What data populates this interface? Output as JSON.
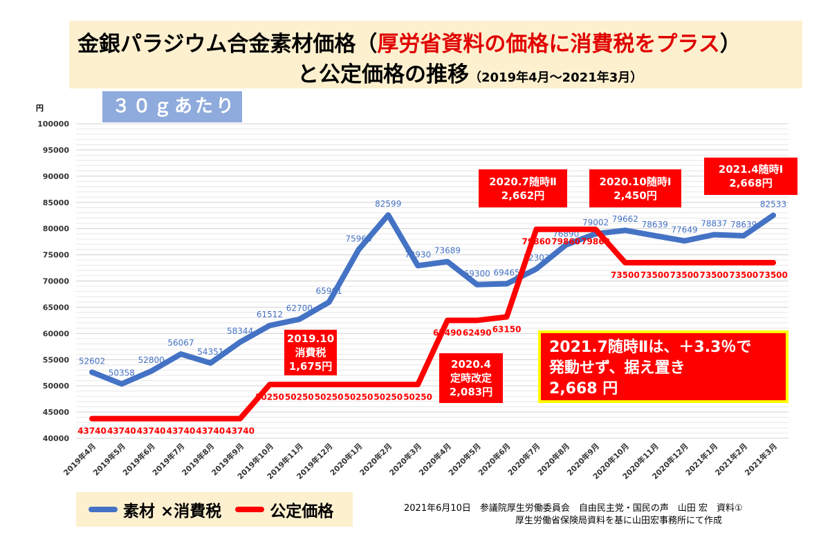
{
  "title": {
    "line1_black": "金銀パラジウム合金素材価格（",
    "line1_red": "厚労省資料の価格に消費税をプラス",
    "line1_end": "）",
    "line2": "と公定価格の推移",
    "line2_sub": "（2019年4月～2021年3月）"
  },
  "unit_box": "３０ｇあたり",
  "callouts": {
    "c1": "2019.10\n消費税\n1,675円",
    "c2": "2020.4\n定時改定\n2,083円",
    "c3": "2020.7随時Ⅱ\n2,662円",
    "c4": "2020.10随時Ⅰ\n2,450円",
    "c5": "2021.4随時Ⅰ\n2,668円",
    "big": "2021.7随時Ⅱは、＋3.3％で\n発動せず、据え置き\n2,668 円"
  },
  "footer": {
    "line1": "2021年6月10日　参議院厚生労働委員会　自由民主党・国民の声　山田 宏　資料①",
    "line2": "厚生労働省保険局資料を基に山田宏事務所にて作成"
  },
  "colors": {
    "blue": "#4472c4",
    "red": "#ff0000"
  },
  "chart_data": {
    "type": "line",
    "ylabel": "円",
    "ylim": [
      40000,
      100000
    ],
    "yticks": [
      40000,
      45000,
      50000,
      55000,
      60000,
      65000,
      70000,
      75000,
      80000,
      85000,
      90000,
      95000,
      100000
    ],
    "grid": true,
    "legend": "bottom-left",
    "categories": [
      "2019年4月",
      "2019年5月",
      "2019年6月",
      "2019年7月",
      "2019年8月",
      "2019年9月",
      "2019年10月",
      "2019年11月",
      "2019年12月",
      "2020年1月",
      "2020年2月",
      "2020年3月",
      "2020年4月",
      "2020年5月",
      "2020年6月",
      "2020年7月",
      "2020年8月",
      "2020年9月",
      "2020年10月",
      "2020年11月",
      "2020年12月",
      "2021年1月",
      "2021年2月",
      "2021年3月"
    ],
    "series": [
      {
        "name": "素材 ×消費税",
        "color": "#4472c4",
        "values": [
          52602,
          50358,
          52800,
          56067,
          54351,
          58344,
          61512,
          62700,
          65961,
          75966,
          82599,
          72930,
          73689,
          69300,
          69465,
          72303,
          76890,
          79002,
          79662,
          78639,
          77649,
          78837,
          78639,
          82533
        ]
      },
      {
        "name": "公定価格",
        "color": "#ff0000",
        "values": [
          43740,
          43740,
          43740,
          43740,
          43740,
          43740,
          50250,
          50250,
          50250,
          50250,
          50250,
          50250,
          62490,
          62490,
          63150,
          79860,
          79860,
          79860,
          73500,
          73500,
          73500,
          73500,
          73500,
          73500
        ]
      }
    ]
  }
}
